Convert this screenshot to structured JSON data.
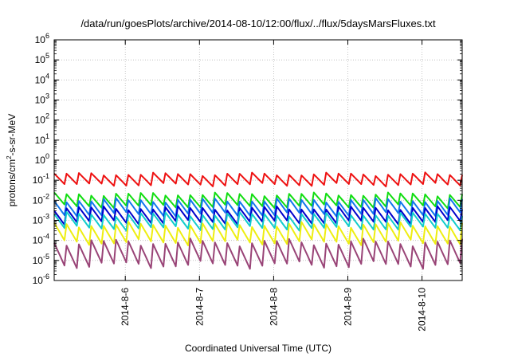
{
  "chart_data": {
    "type": "line",
    "title": "/data/run/goesPlots/archive/2014-08-10/12:00/flux/../flux/5daysMarsFluxes.txt",
    "xlabel": "Coordinated Universal Time (UTC)",
    "ylabel_parts": {
      "pre": "protons/cm",
      "sup": "2",
      "post": "-s-sr-MeV"
    },
    "x_scale": "time",
    "xlim": [
      "2014-08-05T01:00",
      "2014-08-10T13:00"
    ],
    "x_ticks": [
      {
        "t": "2014-08-06",
        "label": "2014-8-6"
      },
      {
        "t": "2014-08-07",
        "label": "2014-8-7"
      },
      {
        "t": "2014-08-08",
        "label": "2014-8-8"
      },
      {
        "t": "2014-08-09",
        "label": "2014-8-9"
      },
      {
        "t": "2014-08-10",
        "label": "2014-8-10"
      }
    ],
    "y_scale": "log",
    "ylim": [
      1e-06,
      1000000.0
    ],
    "y_ticks": [
      {
        "value": 1e-06,
        "base": "10",
        "exp": "-6"
      },
      {
        "value": 1e-05,
        "base": "10",
        "exp": "-5"
      },
      {
        "value": 0.0001,
        "base": "10",
        "exp": "-4"
      },
      {
        "value": 0.001,
        "base": "10",
        "exp": "-3"
      },
      {
        "value": 0.01,
        "base": "10",
        "exp": "-2"
      },
      {
        "value": 0.1,
        "base": "10",
        "exp": "-1"
      },
      {
        "value": 1.0,
        "base": "10",
        "exp": "0"
      },
      {
        "value": 10.0,
        "base": "10",
        "exp": "1"
      },
      {
        "value": 100.0,
        "base": "10",
        "exp": "2"
      },
      {
        "value": 1000.0,
        "base": "10",
        "exp": "3"
      },
      {
        "value": 10000.0,
        "base": "10",
        "exp": "4"
      },
      {
        "value": 100000.0,
        "base": "10",
        "exp": "5"
      },
      {
        "value": 1000000.0,
        "base": "10",
        "exp": "6"
      }
    ],
    "grid": true,
    "legend": "none",
    "sawtooth_period_hours": 4,
    "series": [
      {
        "color": "#ee1111",
        "min": 0.06,
        "max": 0.2
      },
      {
        "color": "#11dd11",
        "min": 0.005,
        "max": 0.02
      },
      {
        "color": "#1177ee",
        "min": 0.002,
        "max": 0.01
      },
      {
        "color": "#0000cc",
        "min": 0.0008,
        "max": 0.004
      },
      {
        "color": "#11cccc",
        "min": 0.0004,
        "max": 0.002
      },
      {
        "color": "#eeee11",
        "min": 8e-05,
        "max": 0.0006
      },
      {
        "color": "#994477",
        "min": 6e-06,
        "max": 8e-05
      }
    ]
  }
}
